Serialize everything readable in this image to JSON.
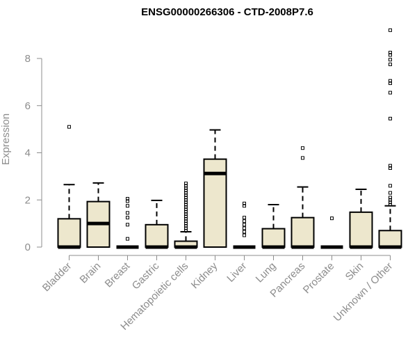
{
  "chart_data": {
    "type": "boxplot",
    "title": "ENSG00000266306 - CTD-2008P7.6",
    "xlabel": "",
    "ylabel": "Expression",
    "ylim": [
      0,
      9.3
    ],
    "yticks": [
      0,
      2,
      4,
      6,
      8
    ],
    "grid": false,
    "box_fill": "#ede7cd",
    "categories": [
      "Bladder",
      "Brain",
      "Breast",
      "Gastric",
      "Hematopoietic cells",
      "Kidney",
      "Liver",
      "Lung",
      "Pancreas",
      "Prostate",
      "Skin",
      "Unknown / Other"
    ],
    "boxes": [
      {
        "q1": 0,
        "median": 0,
        "q3": 1.2,
        "whisker_low": 0,
        "whisker_high": 2.65,
        "outliers": [
          5.1
        ]
      },
      {
        "q1": 0,
        "median": 1.0,
        "q3": 1.93,
        "whisker_low": 0,
        "whisker_high": 2.72,
        "outliers": []
      },
      {
        "q1": 0,
        "median": 0,
        "q3": 0,
        "whisker_low": 0,
        "whisker_high": 0,
        "outliers": [
          0.35,
          0.95,
          1.25,
          1.45,
          1.75,
          1.95,
          2.05
        ]
      },
      {
        "q1": 0,
        "median": 0,
        "q3": 0.95,
        "whisker_low": 0,
        "whisker_high": 1.98,
        "outliers": []
      },
      {
        "q1": 0,
        "median": 0,
        "q3": 0.25,
        "whisker_low": 0,
        "whisker_high": 0.65,
        "outliers": [
          0.7,
          0.8,
          0.9,
          1.0,
          1.1,
          1.2,
          1.3,
          1.4,
          1.5,
          1.6,
          1.7,
          1.8,
          1.9,
          2.0,
          2.1,
          2.2,
          2.3,
          2.4,
          2.5,
          2.6,
          2.7
        ]
      },
      {
        "q1": 0,
        "median": 3.12,
        "q3": 3.73,
        "whisker_low": 0,
        "whisker_high": 4.97,
        "outliers": []
      },
      {
        "q1": 0,
        "median": 0,
        "q3": 0,
        "whisker_low": 0,
        "whisker_high": 0,
        "outliers": [
          0.5,
          0.65,
          0.8,
          0.95,
          1.1,
          1.25,
          1.75,
          1.85
        ]
      },
      {
        "q1": 0,
        "median": 0,
        "q3": 0.78,
        "whisker_low": 0,
        "whisker_high": 1.8,
        "outliers": []
      },
      {
        "q1": 0,
        "median": 0,
        "q3": 1.25,
        "whisker_low": 0,
        "whisker_high": 2.55,
        "outliers": [
          3.78,
          4.2
        ]
      },
      {
        "q1": 0,
        "median": 0,
        "q3": 0,
        "whisker_low": 0,
        "whisker_high": 0,
        "outliers": [
          1.22
        ]
      },
      {
        "q1": 0,
        "median": 0,
        "q3": 1.48,
        "whisker_low": 0,
        "whisker_high": 2.45,
        "outliers": []
      },
      {
        "q1": 0,
        "median": 0,
        "q3": 0.7,
        "whisker_low": 0,
        "whisker_high": 1.75,
        "outliers": [
          1.8,
          1.9,
          2.0,
          2.1,
          2.3,
          2.6,
          3.35,
          3.45,
          5.45,
          6.55,
          6.95,
          7.05,
          7.75,
          7.95,
          8.15,
          8.25,
          9.2
        ]
      }
    ]
  }
}
